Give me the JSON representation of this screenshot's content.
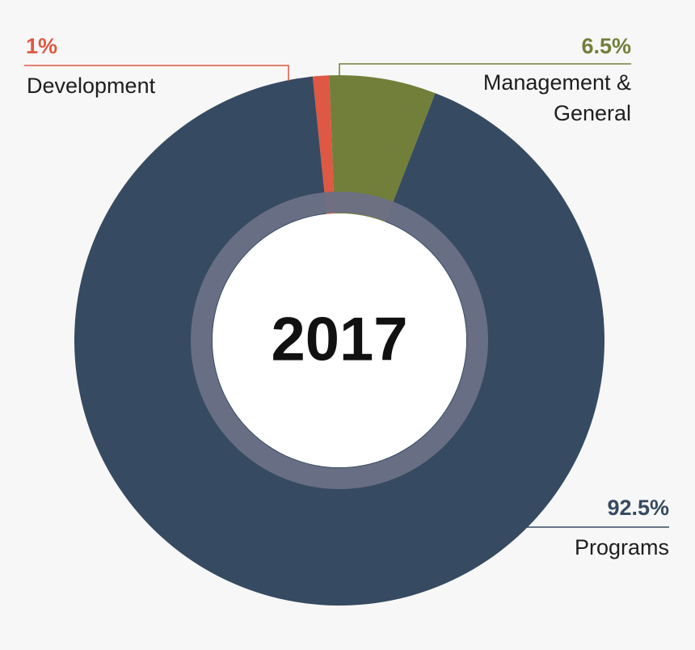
{
  "chart_data": {
    "type": "pie",
    "center_label": "2017",
    "slices": [
      {
        "label": "Programs",
        "value": 92.5,
        "display": "92.5%",
        "color": "#364a61"
      },
      {
        "label": "Development",
        "value": 1,
        "display": "1%",
        "color": "#de5843"
      },
      {
        "label": "Management & General",
        "label_lines": [
          "Management &",
          "General"
        ],
        "value": 6.5,
        "display": "6.5%",
        "color": "#727f3a"
      }
    ],
    "inner_ring_color": "#6b7085",
    "legend": "callouts"
  }
}
